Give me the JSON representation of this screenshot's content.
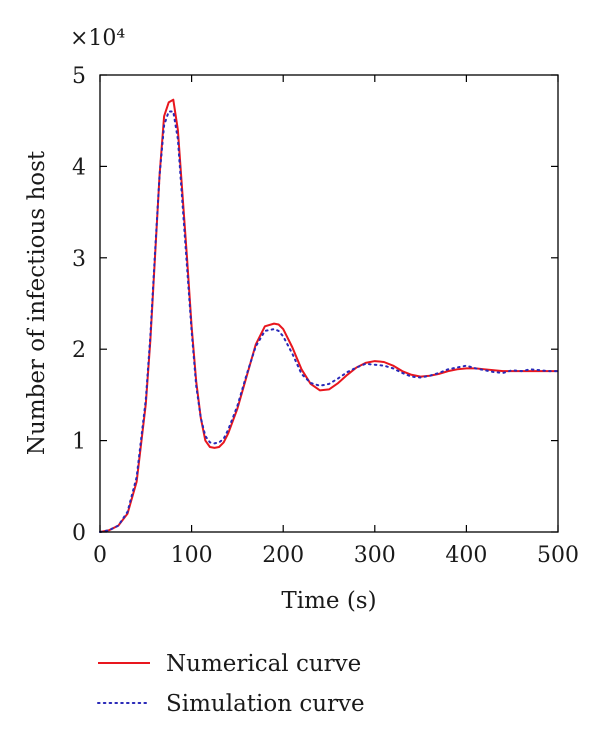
{
  "chart_data": {
    "type": "line",
    "xlabel": "Time (s)",
    "ylabel": "Number of infectious host",
    "y_multiplier_label": "×10⁴",
    "xlim": [
      0,
      500
    ],
    "ylim": [
      0,
      5
    ],
    "x_ticks": [
      0,
      100,
      200,
      300,
      400,
      500
    ],
    "y_ticks": [
      0,
      1,
      2,
      3,
      4,
      5
    ],
    "grid": false,
    "legend_position": "bottom",
    "series": [
      {
        "name": "Numerical curve",
        "color": "#e8161e",
        "style": "solid",
        "x": [
          0,
          10,
          20,
          30,
          40,
          50,
          55,
          60,
          65,
          70,
          75,
          80,
          85,
          90,
          95,
          100,
          105,
          110,
          115,
          120,
          125,
          130,
          135,
          140,
          150,
          160,
          170,
          180,
          190,
          195,
          200,
          210,
          220,
          230,
          240,
          250,
          260,
          270,
          280,
          290,
          300,
          310,
          320,
          330,
          340,
          350,
          360,
          370,
          380,
          390,
          400,
          410,
          420,
          430,
          440,
          450,
          460,
          470,
          480,
          490,
          500
        ],
        "y": [
          0.0,
          0.02,
          0.07,
          0.2,
          0.55,
          1.4,
          2.1,
          3.0,
          3.9,
          4.55,
          4.7,
          4.73,
          4.4,
          3.7,
          3.0,
          2.25,
          1.65,
          1.25,
          1.0,
          0.93,
          0.92,
          0.93,
          0.98,
          1.08,
          1.35,
          1.7,
          2.05,
          2.25,
          2.28,
          2.27,
          2.22,
          2.02,
          1.78,
          1.62,
          1.55,
          1.56,
          1.63,
          1.72,
          1.8,
          1.85,
          1.87,
          1.86,
          1.82,
          1.76,
          1.72,
          1.7,
          1.71,
          1.73,
          1.76,
          1.78,
          1.79,
          1.79,
          1.78,
          1.77,
          1.76,
          1.76,
          1.76,
          1.76,
          1.76,
          1.76,
          1.76
        ]
      },
      {
        "name": "Simulation curve",
        "color": "#2a2ab8",
        "style": "dotted",
        "x": [
          0,
          10,
          20,
          30,
          40,
          50,
          55,
          60,
          65,
          70,
          75,
          80,
          85,
          90,
          95,
          100,
          105,
          110,
          115,
          120,
          125,
          130,
          135,
          140,
          150,
          160,
          170,
          180,
          190,
          195,
          200,
          210,
          220,
          230,
          240,
          250,
          260,
          270,
          280,
          290,
          300,
          310,
          320,
          330,
          340,
          350,
          360,
          370,
          380,
          390,
          400,
          410,
          420,
          430,
          440,
          450,
          460,
          470,
          480,
          490,
          500
        ],
        "y": [
          0.0,
          0.02,
          0.07,
          0.22,
          0.6,
          1.45,
          2.15,
          3.05,
          3.9,
          4.45,
          4.6,
          4.6,
          4.3,
          3.6,
          2.9,
          2.2,
          1.6,
          1.25,
          1.05,
          0.98,
          0.97,
          0.98,
          1.02,
          1.12,
          1.38,
          1.72,
          2.03,
          2.2,
          2.22,
          2.2,
          2.14,
          1.95,
          1.73,
          1.63,
          1.6,
          1.62,
          1.68,
          1.75,
          1.8,
          1.84,
          1.83,
          1.82,
          1.79,
          1.74,
          1.7,
          1.69,
          1.71,
          1.74,
          1.78,
          1.8,
          1.82,
          1.79,
          1.77,
          1.75,
          1.74,
          1.77,
          1.76,
          1.78,
          1.77,
          1.76,
          1.76
        ]
      }
    ]
  }
}
